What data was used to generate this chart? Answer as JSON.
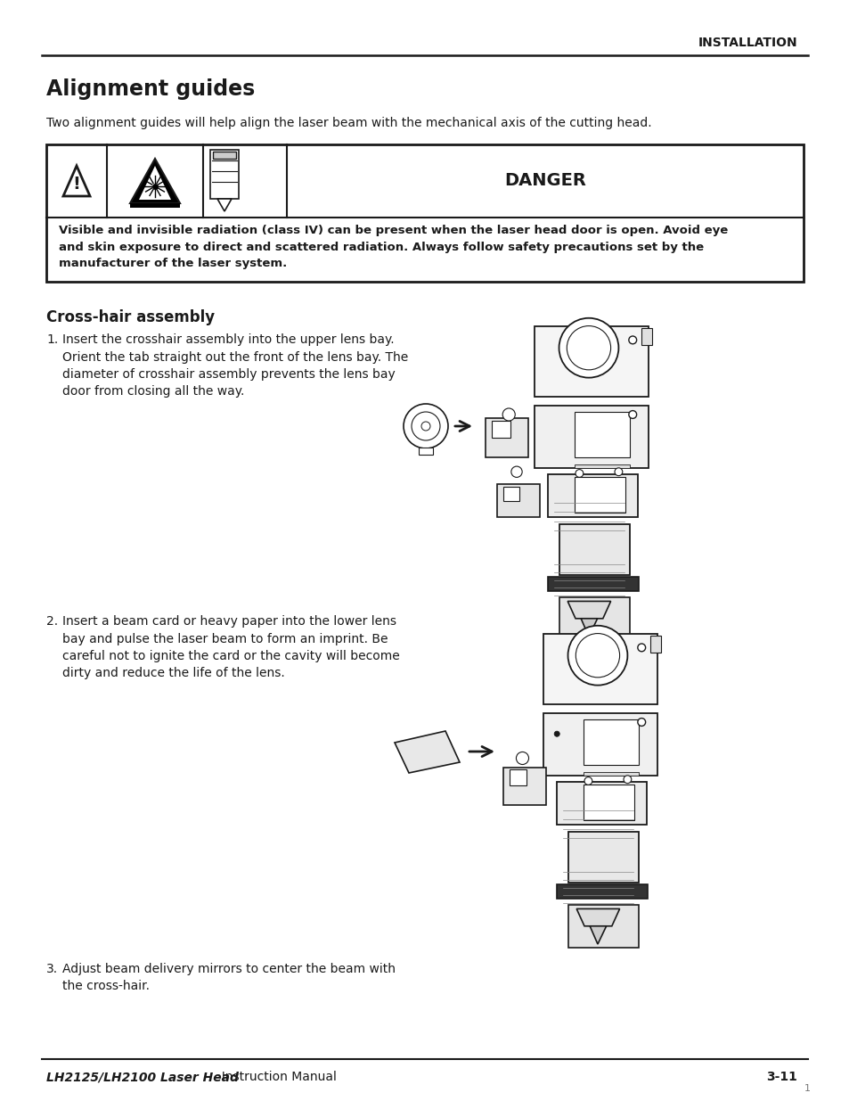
{
  "page_title": "INSTALLATION",
  "section_title": "Alignment guides",
  "intro_text": "Two alignment guides will help align the laser beam with the mechanical axis of the cutting head.",
  "danger_title": "DANGER",
  "danger_body": "Visible and invisible radiation (class IV) can be present when the laser head door is open. Avoid eye\nand skin exposure to direct and scattered radiation. Always follow safety precautions set by the\nmanufacturer of the laser system.",
  "subsection_title": "Cross-hair assembly",
  "step1_text": "Insert the crosshair assembly into the upper lens bay.\nOrient the tab straight out the front of the lens bay. The\ndiameter of crosshair assembly prevents the lens bay\ndoor from closing all the way.",
  "step2_text": "Insert a beam card or heavy paper into the lower lens\nbay and pulse the laser beam to form an imprint. Be\ncareful not to ignite the card or the cavity will become\ndirty and reduce the life of the lens.",
  "step3_text": "Adjust beam delivery mirrors to center the beam with\nthe cross-hair.",
  "footer_left_bold": "LH2125/LH2100 Laser Head",
  "footer_left_normal": "  Instruction Manual",
  "footer_right": "3-11",
  "footer_page_num": "1",
  "bg_color": "#ffffff",
  "text_color": "#1a1a1a",
  "border_color": "#1a1a1a",
  "line_color": "#1a1a1a"
}
